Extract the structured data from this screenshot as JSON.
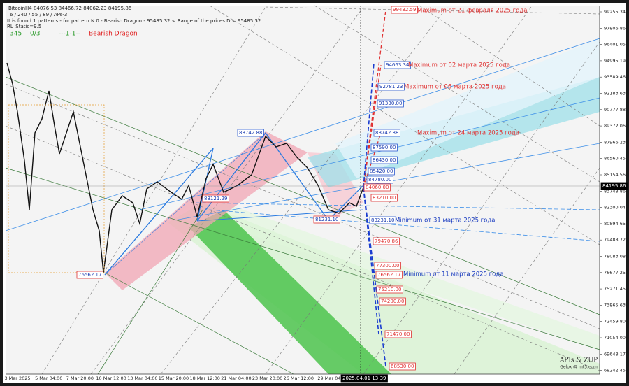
{
  "header": {
    "symbol_line": "BitcoinH4  84076.53 84466.72 84062.23 84195.86",
    "params": "6 / 240 / 55 / 89 / APs-3",
    "pattern_info": "It is found 1 patterns  -  for pattern N 0 - Bearish Dragon - 95485.32 < Range of the prices D < 95485.32",
    "rl_static": "RL_Static=9.5",
    "status": {
      "count": "345",
      "ratio": "0/3",
      "code": "---1-1--",
      "pattern": "Bearish Dragon"
    }
  },
  "price_axis": {
    "labels": [
      "99255.34",
      "97806.86",
      "96401.05",
      "94995.19",
      "93589.46",
      "92183.63",
      "90777.88",
      "89372.06",
      "87966.23",
      "86560.45",
      "85154.56",
      "83748.86",
      "82300.04",
      "80894.65",
      "79488.72",
      "78083.08",
      "76677.25",
      "75271.45",
      "73865.63",
      "72459.80",
      "71054.00",
      "69648.17",
      "68242.45"
    ],
    "current": "84195.86"
  },
  "time_axis": {
    "labels": [
      "3 Mar 2025",
      "5 Mar 04:00",
      "7 Mar 20:00",
      "10 Mar 12:00",
      "13 Mar 04:00",
      "15 Mar 20:00",
      "18 Mar 12:00",
      "21 Mar 04:00",
      "23 Mar 20:00",
      "26 Mar 12:00",
      "29 Mar 04:"
    ],
    "current": "2025.04.01 13:39"
  },
  "levels": [
    "99432.59",
    "94663.34",
    "92781.23",
    "91330.00",
    "88742.88",
    "87590.00",
    "86430.00",
    "85420.00",
    "84780.00",
    "84060.00",
    "83210.00",
    "83231.10",
    "79470.86",
    "77300.00",
    "76562.17",
    "75210.00",
    "74200.00",
    "71470.00",
    "68530.00"
  ],
  "pattern_points": [
    "88742.88",
    "83121.29",
    "81231.10",
    "76562.17"
  ],
  "annotations": [
    "Maximum от 21  февраля 2025 года",
    "Maximum от 02 марта 2025 года",
    "Maximum от 06 марта 2025 года",
    "Maximum от 24 марта 2025 года",
    "Minimum от 31 марта 2025 года",
    "Minimum от 11 марта 2025 года"
  ],
  "watermark": {
    "title": "APIs & ZUP",
    "site": "Gelox @ mt5.com"
  }
}
